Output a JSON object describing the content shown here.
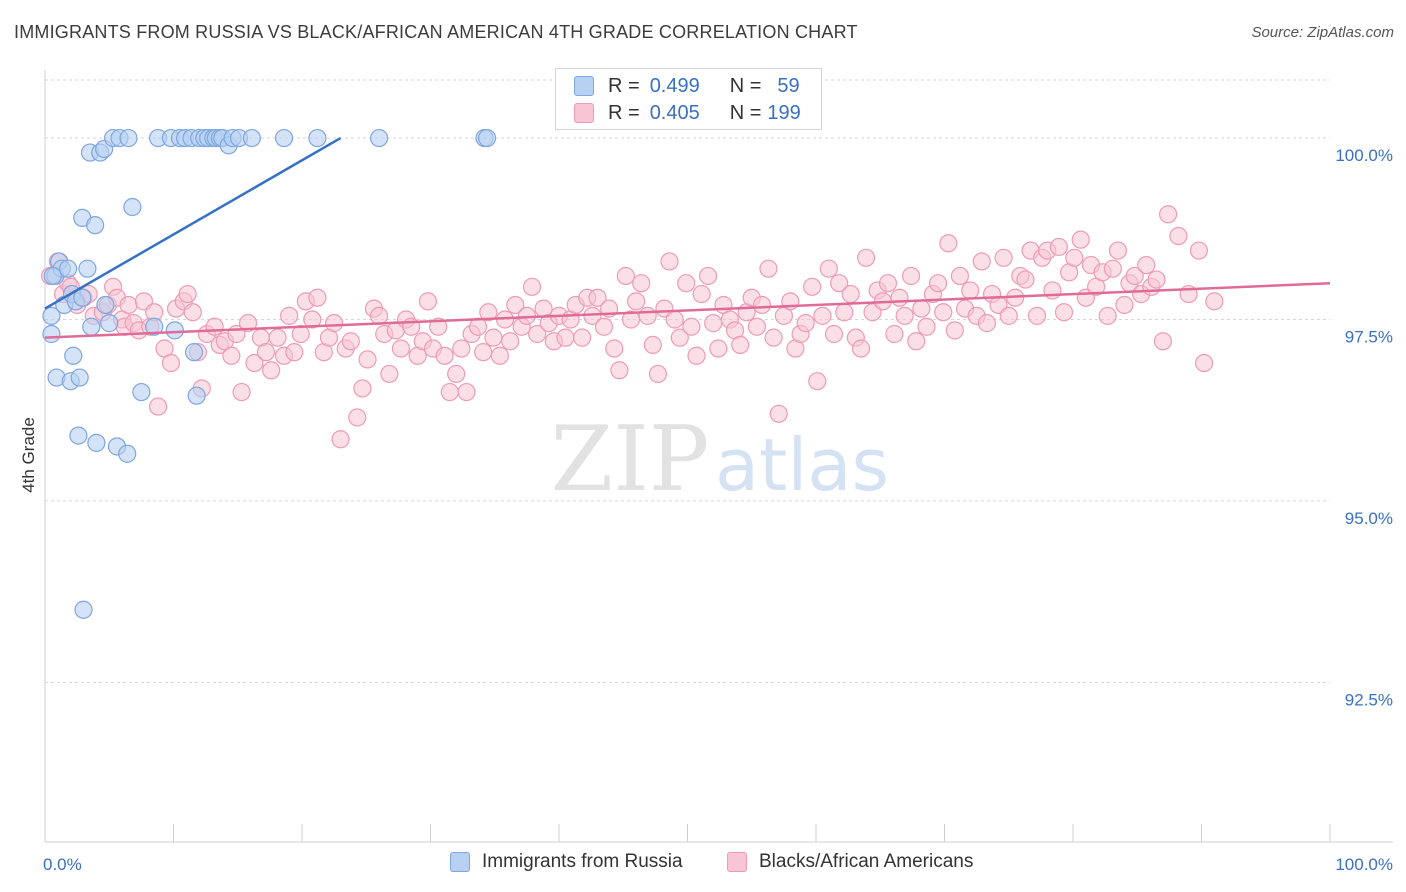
{
  "title": "IMMIGRANTS FROM RUSSIA VS BLACK/AFRICAN AMERICAN 4TH GRADE CORRELATION CHART",
  "source": "Source: ZipAtlas.com",
  "colors": {
    "blue_fill": "#b8d0f2",
    "blue_stroke": "#7ea6e0",
    "blue_line": "#3572c6",
    "pink_fill": "#f7c5d4",
    "pink_stroke": "#ee9bb5",
    "pink_line": "#e06b98",
    "axis_text": "#3a70c4",
    "grid": "#d6d6d6"
  },
  "legend": {
    "r_label": "R =",
    "n_label": "N =",
    "series": [
      {
        "name": "Immigrants from Russia",
        "r": "0.499",
        "n": "59"
      },
      {
        "name": "Blacks/African Americans",
        "r": "0.405",
        "n": "199"
      }
    ]
  },
  "chart_data": {
    "type": "scatter",
    "title": "IMMIGRANTS FROM RUSSIA VS BLACK/AFRICAN AMERICAN 4TH GRADE CORRELATION CHART",
    "xlabel": "",
    "ylabel": "4th Grade",
    "xlim": [
      0,
      100
    ],
    "ylim": [
      90.3,
      100.8
    ],
    "x_tick_labels": [
      "0.0%",
      "100.0%"
    ],
    "y_ticks": [
      92.5,
      95.0,
      97.5,
      100.0
    ],
    "y_tick_labels": [
      "92.5%",
      "95.0%",
      "97.5%",
      "100.0%"
    ],
    "grid": true,
    "legend_position": "top-center",
    "watermark": {
      "part1": "ZIP",
      "part2": "atlas"
    },
    "series": [
      {
        "name": "Immigrants from Russia",
        "trend": {
          "x": [
            0,
            23.0
          ],
          "y": [
            97.65,
            100.0
          ]
        },
        "points": [
          [
            0.5,
            97.55
          ],
          [
            0.5,
            97.3
          ],
          [
            0.8,
            98.1
          ],
          [
            0.9,
            96.7
          ],
          [
            1.1,
            98.3
          ],
          [
            1.3,
            98.2
          ],
          [
            1.5,
            97.7
          ],
          [
            1.8,
            98.2
          ],
          [
            2.0,
            96.65
          ],
          [
            2.1,
            97.85
          ],
          [
            2.2,
            97.0
          ],
          [
            2.4,
            97.75
          ],
          [
            2.6,
            95.9
          ],
          [
            2.7,
            96.7
          ],
          [
            2.9,
            98.9
          ],
          [
            3.0,
            93.5
          ],
          [
            3.3,
            98.2
          ],
          [
            3.5,
            99.8
          ],
          [
            3.6,
            97.4
          ],
          [
            3.9,
            98.8
          ],
          [
            4.0,
            95.8
          ],
          [
            4.3,
            99.8
          ],
          [
            4.6,
            99.85
          ],
          [
            4.7,
            97.7
          ],
          [
            5.0,
            97.45
          ],
          [
            5.3,
            100.0
          ],
          [
            5.6,
            95.75
          ],
          [
            5.8,
            100.0
          ],
          [
            6.4,
            95.65
          ],
          [
            6.5,
            100.0
          ],
          [
            6.8,
            99.05
          ],
          [
            7.5,
            96.5
          ],
          [
            8.5,
            97.4
          ],
          [
            8.8,
            100.0
          ],
          [
            9.8,
            100.0
          ],
          [
            10.1,
            97.35
          ],
          [
            10.5,
            100.0
          ],
          [
            10.9,
            100.0
          ],
          [
            11.4,
            100.0
          ],
          [
            11.6,
            97.05
          ],
          [
            11.8,
            96.45
          ],
          [
            12.0,
            100.0
          ],
          [
            12.4,
            100.0
          ],
          [
            12.7,
            100.0
          ],
          [
            13.1,
            100.0
          ],
          [
            13.3,
            100.0
          ],
          [
            13.6,
            100.0
          ],
          [
            13.8,
            100.0
          ],
          [
            14.3,
            99.9
          ],
          [
            14.6,
            100.0
          ],
          [
            15.1,
            100.0
          ],
          [
            16.1,
            100.0
          ],
          [
            18.6,
            100.0
          ],
          [
            21.2,
            100.0
          ],
          [
            26.0,
            100.0
          ],
          [
            34.2,
            100.0
          ],
          [
            34.4,
            100.0
          ],
          [
            0.6,
            98.1
          ],
          [
            2.9,
            97.8
          ]
        ]
      },
      {
        "name": "Blacks/African Americans",
        "trend": {
          "x": [
            0,
            100
          ],
          "y": [
            97.25,
            98.0
          ]
        },
        "points": [
          [
            0.4,
            98.1
          ],
          [
            1.0,
            98.3
          ],
          [
            1.4,
            97.85
          ],
          [
            1.8,
            98.0
          ],
          [
            2.0,
            97.95
          ],
          [
            2.5,
            97.7
          ],
          [
            3.0,
            97.8
          ],
          [
            3.4,
            97.85
          ],
          [
            3.8,
            97.55
          ],
          [
            4.5,
            97.6
          ],
          [
            4.9,
            97.7
          ],
          [
            5.3,
            97.95
          ],
          [
            5.6,
            97.8
          ],
          [
            6.0,
            97.5
          ],
          [
            6.2,
            97.4
          ],
          [
            6.5,
            97.7
          ],
          [
            6.9,
            97.45
          ],
          [
            7.3,
            97.35
          ],
          [
            7.7,
            97.75
          ],
          [
            8.2,
            97.4
          ],
          [
            8.5,
            97.6
          ],
          [
            8.8,
            96.3
          ],
          [
            9.3,
            97.1
          ],
          [
            9.8,
            96.9
          ],
          [
            10.2,
            97.65
          ],
          [
            10.8,
            97.75
          ],
          [
            11.1,
            97.85
          ],
          [
            11.5,
            97.6
          ],
          [
            11.9,
            97.05
          ],
          [
            12.2,
            96.55
          ],
          [
            12.6,
            97.3
          ],
          [
            13.2,
            97.4
          ],
          [
            13.6,
            97.15
          ],
          [
            14.0,
            97.2
          ],
          [
            14.5,
            97.0
          ],
          [
            14.9,
            97.3
          ],
          [
            15.3,
            96.5
          ],
          [
            15.8,
            97.45
          ],
          [
            16.3,
            96.9
          ],
          [
            16.8,
            97.25
          ],
          [
            17.2,
            97.05
          ],
          [
            17.6,
            96.8
          ],
          [
            18.1,
            97.25
          ],
          [
            18.6,
            97.0
          ],
          [
            19.0,
            97.55
          ],
          [
            19.4,
            97.05
          ],
          [
            19.9,
            97.3
          ],
          [
            20.3,
            97.75
          ],
          [
            20.8,
            97.5
          ],
          [
            21.2,
            97.8
          ],
          [
            21.7,
            97.05
          ],
          [
            22.1,
            97.25
          ],
          [
            22.5,
            97.45
          ],
          [
            23.0,
            95.85
          ],
          [
            23.4,
            97.1
          ],
          [
            23.8,
            97.2
          ],
          [
            24.3,
            96.15
          ],
          [
            24.7,
            96.55
          ],
          [
            25.1,
            96.95
          ],
          [
            25.6,
            97.65
          ],
          [
            26.0,
            97.55
          ],
          [
            26.4,
            97.3
          ],
          [
            26.8,
            96.75
          ],
          [
            27.3,
            97.35
          ],
          [
            27.7,
            97.1
          ],
          [
            28.1,
            97.5
          ],
          [
            28.5,
            97.4
          ],
          [
            29.0,
            97.0
          ],
          [
            29.4,
            97.2
          ],
          [
            29.8,
            97.75
          ],
          [
            30.2,
            97.1
          ],
          [
            30.6,
            97.4
          ],
          [
            31.1,
            97.0
          ],
          [
            31.5,
            96.5
          ],
          [
            32.0,
            96.75
          ],
          [
            32.4,
            97.1
          ],
          [
            32.8,
            96.5
          ],
          [
            33.2,
            97.3
          ],
          [
            33.7,
            97.4
          ],
          [
            34.1,
            97.05
          ],
          [
            34.5,
            97.6
          ],
          [
            34.9,
            97.25
          ],
          [
            35.4,
            97.0
          ],
          [
            35.8,
            97.5
          ],
          [
            36.2,
            97.2
          ],
          [
            36.6,
            97.7
          ],
          [
            37.1,
            97.4
          ],
          [
            37.5,
            97.55
          ],
          [
            37.9,
            97.95
          ],
          [
            38.3,
            97.3
          ],
          [
            38.8,
            97.65
          ],
          [
            39.2,
            97.45
          ],
          [
            39.6,
            97.2
          ],
          [
            40.0,
            97.55
          ],
          [
            40.5,
            97.25
          ],
          [
            40.9,
            97.5
          ],
          [
            41.3,
            97.7
          ],
          [
            41.8,
            97.25
          ],
          [
            42.2,
            97.8
          ],
          [
            42.6,
            97.55
          ],
          [
            43.0,
            97.8
          ],
          [
            43.5,
            97.4
          ],
          [
            43.9,
            97.65
          ],
          [
            44.3,
            97.1
          ],
          [
            44.7,
            96.8
          ],
          [
            45.2,
            98.1
          ],
          [
            45.6,
            97.5
          ],
          [
            46.0,
            97.75
          ],
          [
            46.4,
            98.0
          ],
          [
            46.9,
            97.55
          ],
          [
            47.3,
            97.15
          ],
          [
            47.7,
            96.75
          ],
          [
            48.2,
            97.65
          ],
          [
            48.6,
            98.3
          ],
          [
            49.0,
            97.5
          ],
          [
            49.4,
            97.25
          ],
          [
            49.9,
            98.0
          ],
          [
            50.3,
            97.4
          ],
          [
            50.7,
            97.0
          ],
          [
            51.1,
            97.85
          ],
          [
            51.6,
            98.1
          ],
          [
            52.0,
            97.45
          ],
          [
            52.4,
            97.1
          ],
          [
            52.8,
            97.7
          ],
          [
            53.3,
            97.5
          ],
          [
            53.7,
            97.35
          ],
          [
            54.1,
            97.15
          ],
          [
            54.6,
            97.6
          ],
          [
            55.0,
            97.8
          ],
          [
            55.4,
            97.4
          ],
          [
            55.8,
            97.7
          ],
          [
            56.3,
            98.2
          ],
          [
            56.7,
            97.25
          ],
          [
            57.1,
            96.2
          ],
          [
            57.5,
            97.55
          ],
          [
            58.0,
            97.75
          ],
          [
            58.4,
            97.1
          ],
          [
            58.8,
            97.3
          ],
          [
            59.2,
            97.45
          ],
          [
            59.7,
            97.95
          ],
          [
            60.1,
            96.65
          ],
          [
            60.5,
            97.55
          ],
          [
            61.0,
            98.2
          ],
          [
            61.4,
            97.3
          ],
          [
            61.8,
            98.0
          ],
          [
            62.2,
            97.6
          ],
          [
            62.7,
            97.85
          ],
          [
            63.1,
            97.25
          ],
          [
            63.5,
            97.1
          ],
          [
            63.9,
            98.35
          ],
          [
            64.4,
            97.6
          ],
          [
            64.8,
            97.9
          ],
          [
            65.2,
            97.75
          ],
          [
            65.6,
            98.0
          ],
          [
            66.1,
            97.3
          ],
          [
            66.5,
            97.8
          ],
          [
            66.9,
            97.55
          ],
          [
            67.4,
            98.1
          ],
          [
            67.8,
            97.2
          ],
          [
            68.2,
            97.65
          ],
          [
            68.6,
            97.4
          ],
          [
            69.1,
            97.85
          ],
          [
            69.5,
            98.0
          ],
          [
            69.9,
            97.6
          ],
          [
            70.3,
            98.55
          ],
          [
            70.8,
            97.35
          ],
          [
            71.2,
            98.1
          ],
          [
            71.6,
            97.65
          ],
          [
            72.0,
            97.9
          ],
          [
            72.5,
            97.55
          ],
          [
            72.9,
            98.3
          ],
          [
            73.3,
            97.45
          ],
          [
            73.7,
            97.85
          ],
          [
            74.2,
            97.7
          ],
          [
            74.6,
            98.35
          ],
          [
            75.0,
            97.55
          ],
          [
            75.5,
            97.8
          ],
          [
            75.9,
            98.1
          ],
          [
            76.3,
            98.05
          ],
          [
            76.7,
            98.45
          ],
          [
            77.2,
            97.55
          ],
          [
            77.6,
            98.35
          ],
          [
            78.0,
            98.45
          ],
          [
            78.4,
            97.9
          ],
          [
            78.9,
            98.5
          ],
          [
            79.3,
            97.6
          ],
          [
            79.7,
            98.15
          ],
          [
            80.1,
            98.35
          ],
          [
            80.6,
            98.6
          ],
          [
            81.0,
            97.8
          ],
          [
            81.4,
            98.25
          ],
          [
            81.8,
            97.95
          ],
          [
            82.3,
            98.15
          ],
          [
            82.7,
            97.55
          ],
          [
            83.1,
            98.2
          ],
          [
            83.5,
            98.45
          ],
          [
            84.0,
            97.7
          ],
          [
            84.4,
            98.0
          ],
          [
            84.8,
            98.1
          ],
          [
            85.3,
            97.85
          ],
          [
            85.7,
            98.25
          ],
          [
            86.1,
            97.95
          ],
          [
            86.5,
            98.05
          ],
          [
            87.0,
            97.2
          ],
          [
            87.4,
            98.95
          ],
          [
            88.2,
            98.65
          ],
          [
            89.0,
            97.85
          ],
          [
            89.8,
            98.45
          ],
          [
            90.2,
            96.9
          ],
          [
            91.0,
            97.75
          ]
        ]
      }
    ]
  }
}
